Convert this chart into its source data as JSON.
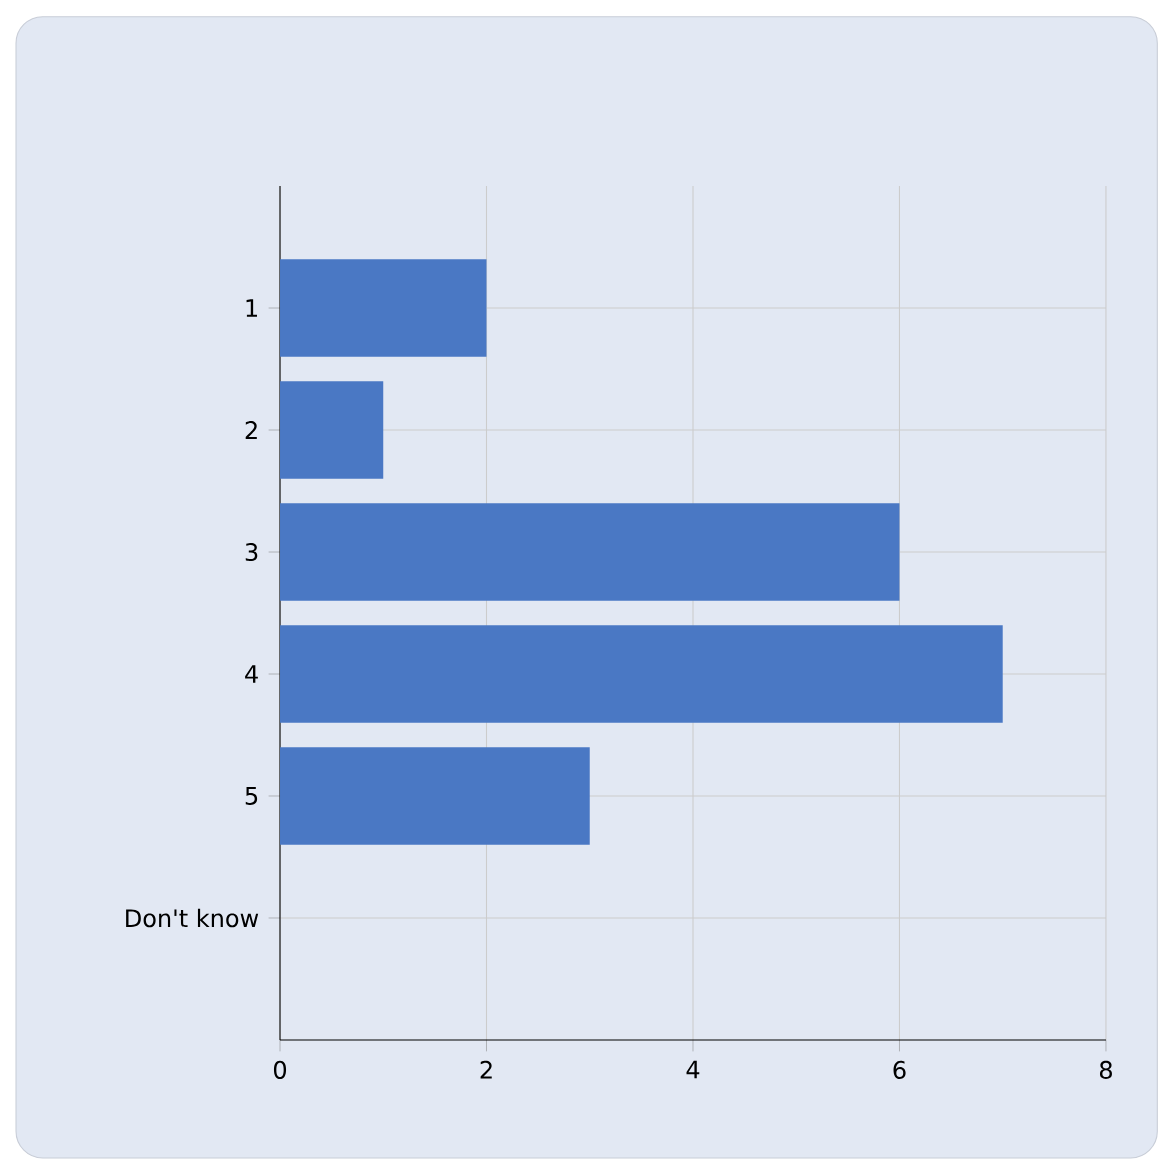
{
  "chart_data": {
    "type": "bar",
    "orientation": "horizontal",
    "categories": [
      "1",
      "2",
      "3",
      "4",
      "5",
      "Don't know"
    ],
    "values": [
      2,
      1,
      6,
      7,
      3,
      0
    ],
    "color": "#4a78c4",
    "xlim": [
      0,
      8
    ],
    "xticks": [
      0,
      2,
      4,
      6,
      8
    ],
    "grid": true
  }
}
